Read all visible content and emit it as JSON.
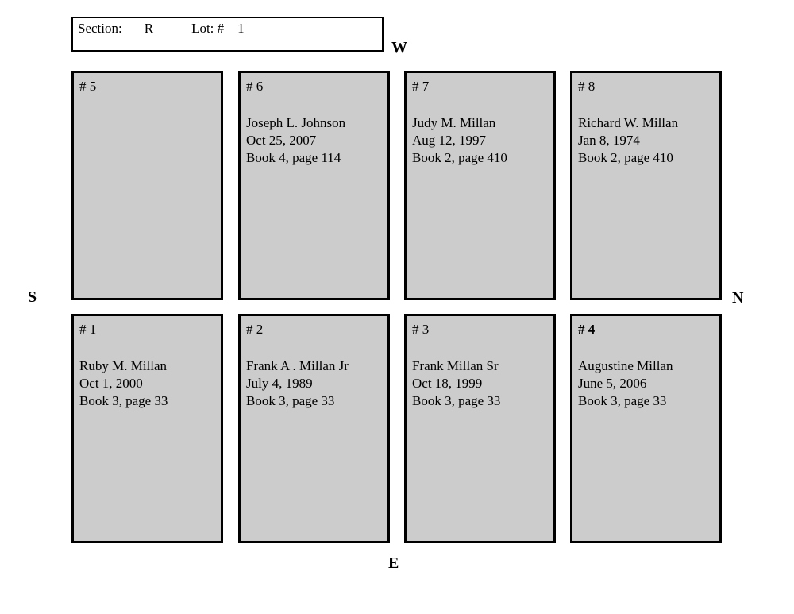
{
  "header": {
    "section_label": "Section:",
    "section_value": "R",
    "lot_label": "Lot: #",
    "lot_value": "1"
  },
  "compass": {
    "west": "W",
    "south": "S",
    "north": "N",
    "east": "E"
  },
  "colors": {
    "plot_fill": "#cccccc",
    "border": "#000000",
    "background": "#ffffff"
  },
  "plots": {
    "top_row": [
      {
        "id": "# 5",
        "name": "",
        "date": "",
        "book": ""
      },
      {
        "id": "# 6",
        "name": "Joseph L. Johnson",
        "date": "Oct 25, 2007",
        "book": "Book 4, page 114"
      },
      {
        "id": "# 7",
        "name": "Judy M. Millan",
        "date": "Aug 12, 1997",
        "book": "Book 2, page 410"
      },
      {
        "id": "# 8",
        "name": "Richard W. Millan",
        "date": "Jan 8, 1974",
        "book": "Book 2, page 410"
      }
    ],
    "bottom_row": [
      {
        "id": "# 1",
        "name": "Ruby M. Millan",
        "date": "Oct 1, 2000",
        "book": "Book 3, page 33"
      },
      {
        "id": "# 2",
        "name": "Frank A . Millan Jr",
        "date": "July 4, 1989",
        "book": "Book 3, page 33"
      },
      {
        "id": "# 3",
        "name": "Frank Millan Sr",
        "date": "Oct 18, 1999",
        "book": "Book 3, page 33"
      },
      {
        "id": "# 4",
        "name": "Augustine Millan",
        "date": "June 5, 2006",
        "book": "Book 3, page 33"
      }
    ]
  }
}
